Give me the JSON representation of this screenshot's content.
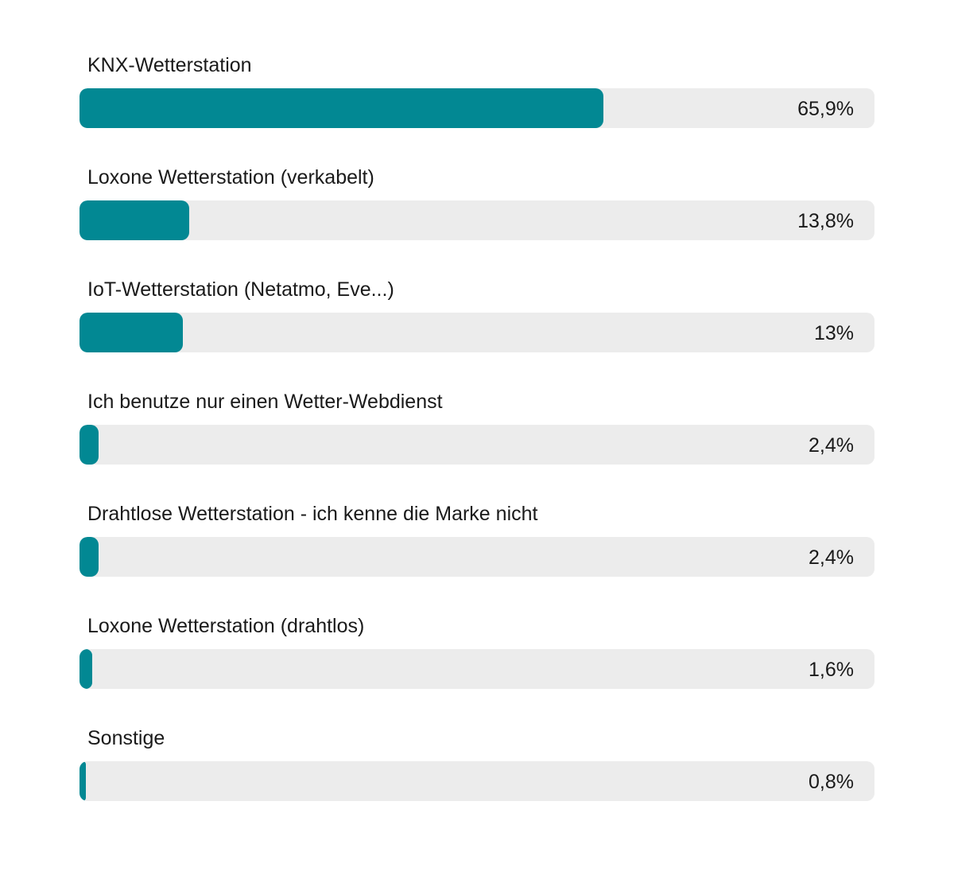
{
  "colors": {
    "bar": "#028893",
    "track": "#ececec"
  },
  "chart_data": {
    "type": "bar",
    "orientation": "horizontal",
    "xlim": [
      0,
      100
    ],
    "grid": false,
    "categories": [
      "KNX-Wetterstation",
      "Loxone Wetterstation (verkabelt)",
      "IoT-Wetterstation (Netatmo, Eve...)",
      "Ich benutze nur einen Wetter-Webdienst",
      "Drahtlose Wetterstation - ich kenne die Marke nicht",
      "Loxone Wetterstation (drahtlos)",
      "Sonstige"
    ],
    "values": [
      65.9,
      13.8,
      13,
      2.4,
      2.4,
      1.6,
      0.8
    ],
    "value_labels": [
      "65,9%",
      "13,8%",
      "13%",
      "2,4%",
      "2,4%",
      "1,6%",
      "0,8%"
    ]
  }
}
